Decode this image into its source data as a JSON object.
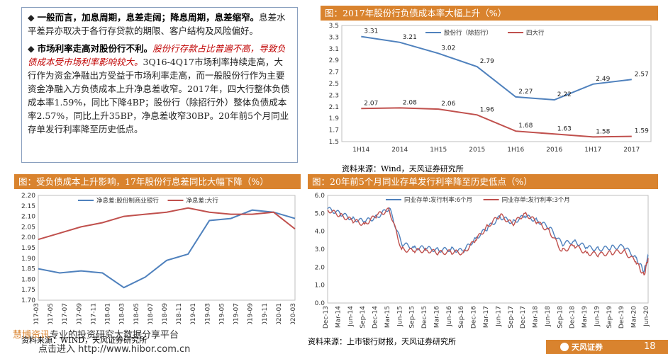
{
  "text_panel": {
    "para1_bullet": "◆",
    "para1_bold": "一般而言，加息周期，息差走阔；降息周期，息差缩窄。",
    "para1_rest": "息差水平差异亦取决于各行存贷款的期限、客户结构及风险偏好。",
    "para2_bullet": "◆",
    "para2_bold": "市场利率走高对股份行不利。",
    "para2_red": "股份行存款占比普遍不高，导致负债成本受市场利率影响较大。",
    "para2_rest": "3Q16-4Q17市场利率持续走高，大行作为资金净融出方受益于市场利率走高，而一般股份行作为主要资金净融入方负债成本上升净息差收窄。2017年，四大行整体负债成本率1.59%，同比下降4BP；股份行（除招行外）整体负债成本率2.57%，同比上升35BP，净息差收窄30BP。20年前5个月同业存单发行利率降至历史低点。"
  },
  "charts": {
    "top_right_title": "图：2017年股份行负债成本率大幅上升（%）",
    "bottom_left_title": "图：受负债成本上升影响，17年股份行息差同比大幅下降（%）",
    "bottom_right_title": "图：20年前5个月同业存单发行利率降至历史低点（%）"
  },
  "sources": {
    "top_right": "资料来源：Wind，天风证券研究所",
    "bottom_left": "资料来源：WIND，天风证券研究所",
    "bottom_right": "资料来源：上市银行财报，天风证券研究所"
  },
  "watermark": {
    "brand": "慧博资讯",
    "line1_rest": "专业的投资研究大数据分享平台",
    "line2": "点击进入 http://www.hibor.com.cn"
  },
  "footer": {
    "logo_text": "天风证券",
    "page_number": "18"
  },
  "colors": {
    "title_bg": "#d9832e",
    "series_blue": "#4f81bd",
    "series_red": "#c0504d"
  },
  "chart_data": [
    {
      "id": "top_right",
      "type": "line",
      "categories": [
        "1H14",
        "2014",
        "1H15",
        "2015",
        "1H16",
        "2016",
        "1H17",
        "2017"
      ],
      "series": [
        {
          "name": "股份行（除招行）",
          "values": [
            3.31,
            3.21,
            3.02,
            2.79,
            2.27,
            2.22,
            2.49,
            2.57
          ],
          "labels": [
            "3.31",
            "3.21",
            "3.02",
            "2.79",
            "2.27",
            "2.22",
            "2.49",
            "2.57"
          ],
          "color": "#4f81bd"
        },
        {
          "name": "四大行",
          "values": [
            2.07,
            2.08,
            2.06,
            1.96,
            1.68,
            1.63,
            1.58,
            1.59
          ],
          "labels": [
            "2.07",
            "2.08",
            "2.06",
            "1.96",
            "1.68",
            "1.63",
            "1.58",
            "1.59"
          ],
          "color": "#c0504d"
        }
      ],
      "ylim": [
        1.5,
        3.5
      ],
      "yticks": [
        "3.5",
        "3.3",
        "3.1",
        "2.9",
        "2.7",
        "2.5",
        "2.3",
        "2.1",
        "1.9",
        "1.7",
        "1.5"
      ],
      "legend_position": "top-right"
    },
    {
      "id": "bottom_left",
      "type": "line",
      "categories": [
        "2017-03",
        "2017-05",
        "2017-07",
        "2017-09",
        "2017-11",
        "2018-01",
        "2018-03",
        "2018-05",
        "2018-07",
        "2018-09",
        "2018-11",
        "2019-01",
        "2019-03",
        "2019-05",
        "2019-07",
        "2019-09",
        "2019-11",
        "2020-01",
        "2020-03"
      ],
      "series": [
        {
          "name": "净息差:股份制商业银行",
          "x": [
            "2017-03",
            "2017-06",
            "2017-09",
            "2017-12",
            "2018-03",
            "2018-06",
            "2018-09",
            "2018-12",
            "2019-03",
            "2019-06",
            "2019-09",
            "2019-12",
            "2020-03"
          ],
          "values": [
            1.85,
            1.83,
            1.84,
            1.83,
            1.76,
            1.81,
            1.89,
            1.92,
            2.08,
            2.09,
            2.13,
            2.12,
            2.09
          ],
          "color": "#4f81bd"
        },
        {
          "name": "净息差:大行",
          "x": [
            "2017-03",
            "2017-06",
            "2017-09",
            "2017-12",
            "2018-03",
            "2018-06",
            "2018-09",
            "2018-12",
            "2019-03",
            "2019-06",
            "2019-09",
            "2019-12",
            "2020-03"
          ],
          "values": [
            1.99,
            2.02,
            2.05,
            2.07,
            2.1,
            2.11,
            2.12,
            2.14,
            2.12,
            2.11,
            2.11,
            2.12,
            2.04
          ],
          "color": "#c0504d"
        }
      ],
      "ylim": [
        1.7,
        2.2
      ],
      "yticks": [
        "2.20",
        "2.15",
        "2.10",
        "2.05",
        "2.00",
        "1.95",
        "1.90",
        "1.85",
        "1.80",
        "1.75",
        "1.70"
      ],
      "legend_position": "top-center"
    },
    {
      "id": "bottom_right",
      "type": "line",
      "categories": [
        "Dec-13",
        "Mar-14",
        "Jun-14",
        "Sep-14",
        "Dec-14",
        "Mar-15",
        "Jun-15",
        "Sep-15",
        "Dec-15",
        "Mar-16",
        "Jun-16",
        "Sep-16",
        "Dec-16",
        "Mar-17",
        "Jun-17",
        "Sep-17",
        "Dec-17",
        "Mar-18",
        "Jun-18",
        "Sep-18",
        "Dec-18",
        "Mar-19",
        "Jun-19",
        "Sep-19",
        "Dec-19",
        "Mar-20",
        "Jun-20"
      ],
      "series": [
        {
          "name": "同业存单:发行利率:6个月",
          "x": [
            "Dec-13",
            "Mar-14",
            "Jun-14",
            "Sep-14",
            "Dec-14",
            "Mar-15",
            "Jun-15",
            "Sep-15",
            "Dec-15",
            "Mar-16",
            "Jun-16",
            "Sep-16",
            "Dec-16",
            "Mar-17",
            "Jun-17",
            "Sep-17",
            "Dec-17",
            "Mar-18",
            "Jun-18",
            "Sep-18",
            "Dec-18",
            "Mar-19",
            "Jun-19",
            "Sep-19",
            "Dec-19",
            "Mar-20",
            "May-20",
            "Jun-20"
          ],
          "values": [
            5.25,
            5.0,
            4.7,
            4.55,
            4.8,
            5.3,
            3.3,
            3.1,
            3.05,
            2.95,
            3.0,
            2.9,
            3.6,
            4.2,
            4.8,
            4.5,
            4.85,
            4.6,
            4.2,
            3.3,
            3.45,
            3.1,
            3.0,
            3.1,
            3.15,
            2.55,
            1.75,
            2.6
          ],
          "color": "#4f81bd"
        },
        {
          "name": "同业存单:发行利率:3个月",
          "x": [
            "Dec-13",
            "Mar-14",
            "Jun-14",
            "Sep-14",
            "Dec-14",
            "Mar-15",
            "Jun-15",
            "Sep-15",
            "Dec-15",
            "Mar-16",
            "Jun-16",
            "Sep-16",
            "Dec-16",
            "Mar-17",
            "Jun-17",
            "Sep-17",
            "Dec-17",
            "Mar-18",
            "Jun-18",
            "Sep-18",
            "Dec-18",
            "Mar-19",
            "Jun-19",
            "Sep-19",
            "Dec-19",
            "Mar-20",
            "May-20",
            "Jun-20"
          ],
          "values": [
            5.2,
            4.9,
            4.6,
            4.4,
            4.9,
            5.2,
            3.0,
            2.9,
            2.95,
            2.8,
            2.85,
            2.8,
            3.5,
            4.3,
            4.9,
            4.4,
            5.0,
            4.5,
            4.0,
            2.9,
            3.2,
            2.8,
            2.7,
            2.8,
            2.9,
            2.3,
            1.55,
            2.5
          ],
          "color": "#c0504d"
        }
      ],
      "ylim": [
        0,
        6
      ],
      "yticks": [
        "6.0",
        "5.0",
        "4.0",
        "3.0",
        "2.0",
        "1.0",
        "0.0"
      ],
      "legend_position": "top-center"
    }
  ]
}
